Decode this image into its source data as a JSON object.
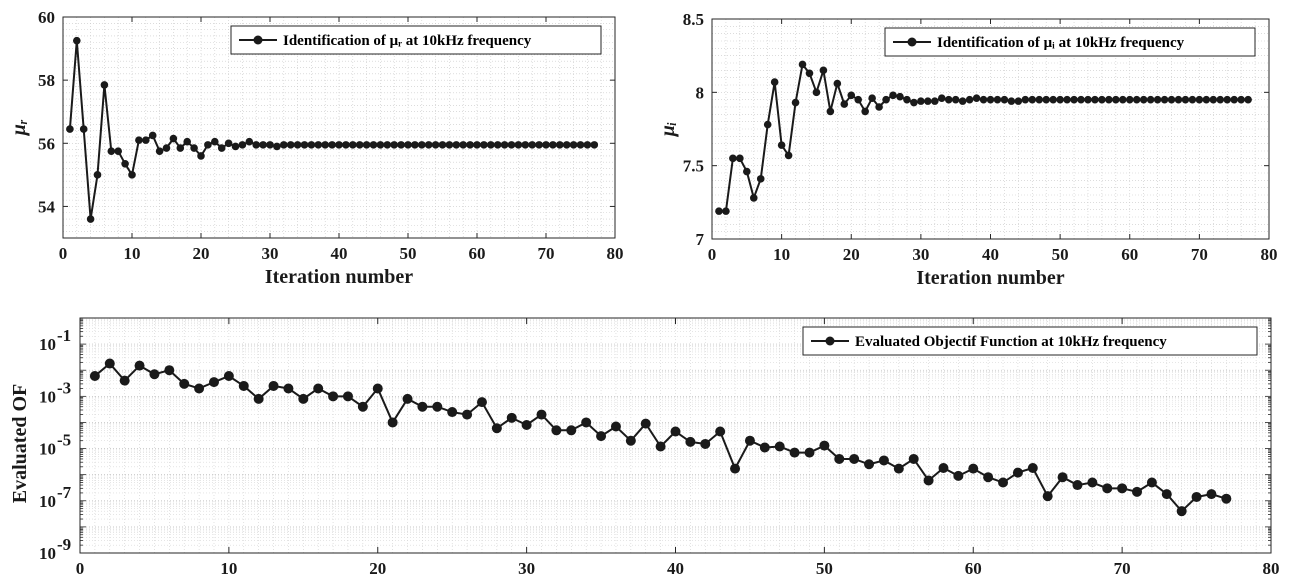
{
  "chart_data": [
    {
      "type": "line",
      "legend": {
        "label": "Identification of μᵣ at 10kHz frequency",
        "position": "top-right"
      },
      "xlabel": "Iteration number",
      "ylabel": "μᵣ",
      "xlim": [
        0,
        80
      ],
      "ylim": [
        53,
        60
      ],
      "xticks": [
        0,
        10,
        20,
        30,
        40,
        50,
        60,
        70,
        80
      ],
      "yticks": [
        54,
        56,
        58,
        60
      ],
      "grid": "minor-dotted",
      "color": "#1a1a1a",
      "series": [
        {
          "x": [
            1,
            2,
            3,
            4,
            5,
            6,
            7,
            8,
            9,
            10,
            11,
            12,
            13,
            14,
            15,
            16,
            17,
            18,
            19,
            20,
            21,
            22,
            23,
            24,
            25,
            26,
            27,
            28,
            29,
            30,
            31,
            32,
            33,
            34,
            35,
            36,
            37,
            38,
            39,
            40,
            41,
            42,
            43,
            44,
            45,
            46,
            47,
            48,
            49,
            50,
            51,
            52,
            53,
            54,
            55,
            56,
            57,
            58,
            59,
            60,
            61,
            62,
            63,
            64,
            65,
            66,
            67,
            68,
            69,
            70,
            71,
            72,
            73,
            74,
            75,
            76,
            77
          ],
          "y": [
            56.45,
            59.25,
            56.45,
            53.6,
            55.0,
            57.85,
            55.75,
            55.75,
            55.35,
            55.0,
            56.1,
            56.1,
            56.25,
            55.75,
            55.85,
            56.15,
            55.85,
            56.05,
            55.85,
            55.6,
            55.95,
            56.05,
            55.85,
            56.0,
            55.9,
            55.95,
            56.05,
            55.95,
            55.95,
            55.95,
            55.9,
            55.95,
            55.95,
            55.95,
            55.95,
            55.95,
            55.95,
            55.95,
            55.95,
            55.95,
            55.95,
            55.95,
            55.95,
            55.95,
            55.95,
            55.95,
            55.95,
            55.95,
            55.95,
            55.95,
            55.95,
            55.95,
            55.95,
            55.95,
            55.95,
            55.95,
            55.95,
            55.95,
            55.95,
            55.95,
            55.95,
            55.95,
            55.95,
            55.95,
            55.95,
            55.95,
            55.95,
            55.95,
            55.95,
            55.95,
            55.95,
            55.95,
            55.95,
            55.95,
            55.95,
            55.95,
            55.95
          ]
        }
      ]
    },
    {
      "type": "line",
      "legend": {
        "label": "Identification of μᵢ at 10kHz frequency",
        "position": "top-right"
      },
      "xlabel": "Iteration number",
      "ylabel": "μᵢ",
      "xlim": [
        0,
        80
      ],
      "ylim": [
        7,
        8.5
      ],
      "xticks": [
        0,
        10,
        20,
        30,
        40,
        50,
        60,
        70,
        80
      ],
      "yticks": [
        7,
        7.5,
        8,
        8.5
      ],
      "grid": "minor-dotted",
      "color": "#1a1a1a",
      "series": [
        {
          "x": [
            1,
            2,
            3,
            4,
            5,
            6,
            7,
            8,
            9,
            10,
            11,
            12,
            13,
            14,
            15,
            16,
            17,
            18,
            19,
            20,
            21,
            22,
            23,
            24,
            25,
            26,
            27,
            28,
            29,
            30,
            31,
            32,
            33,
            34,
            35,
            36,
            37,
            38,
            39,
            40,
            41,
            42,
            43,
            44,
            45,
            46,
            47,
            48,
            49,
            50,
            51,
            52,
            53,
            54,
            55,
            56,
            57,
            58,
            59,
            60,
            61,
            62,
            63,
            64,
            65,
            66,
            67,
            68,
            69,
            70,
            71,
            72,
            73,
            74,
            75,
            76,
            77
          ],
          "y": [
            7.19,
            7.19,
            7.55,
            7.55,
            7.46,
            7.28,
            7.41,
            7.78,
            8.07,
            7.64,
            7.57,
            7.93,
            8.19,
            8.13,
            8.0,
            8.15,
            7.87,
            8.06,
            7.92,
            7.98,
            7.95,
            7.87,
            7.96,
            7.9,
            7.95,
            7.98,
            7.97,
            7.95,
            7.93,
            7.94,
            7.94,
            7.94,
            7.96,
            7.95,
            7.95,
            7.94,
            7.95,
            7.96,
            7.95,
            7.95,
            7.95,
            7.95,
            7.94,
            7.94,
            7.95,
            7.95,
            7.95,
            7.95,
            7.95,
            7.95,
            7.95,
            7.95,
            7.95,
            7.95,
            7.95,
            7.95,
            7.95,
            7.95,
            7.95,
            7.95,
            7.95,
            7.95,
            7.95,
            7.95,
            7.95,
            7.95,
            7.95,
            7.95,
            7.95,
            7.95,
            7.95,
            7.95,
            7.95,
            7.95,
            7.95,
            7.95,
            7.95
          ]
        }
      ]
    },
    {
      "type": "line",
      "legend": {
        "label": "Evaluated Objectif Function at 10kHz frequency",
        "position": "top-right"
      },
      "xlabel": "Iteration number",
      "ylabel": "Evaluated OF",
      "xlim": [
        0,
        80
      ],
      "yscale": "log",
      "ylim": [
        1e-09,
        1
      ],
      "xticks": [
        0,
        10,
        20,
        30,
        40,
        50,
        60,
        70,
        80
      ],
      "yticks": [
        1e-09,
        1e-07,
        1e-05,
        0.001,
        0.1
      ],
      "ytick_labels": [
        {
          "base": "10",
          "exp": "-9"
        },
        {
          "base": "10",
          "exp": "-7"
        },
        {
          "base": "10",
          "exp": "-5"
        },
        {
          "base": "10",
          "exp": "-3"
        },
        {
          "base": "10",
          "exp": "-1"
        }
      ],
      "grid": "minor-dotted",
      "color": "#1a1a1a",
      "series": [
        {
          "x": [
            1,
            2,
            3,
            4,
            5,
            6,
            7,
            8,
            9,
            10,
            11,
            12,
            13,
            14,
            15,
            16,
            17,
            18,
            19,
            20,
            21,
            22,
            23,
            24,
            25,
            26,
            27,
            28,
            29,
            30,
            31,
            32,
            33,
            34,
            35,
            36,
            37,
            38,
            39,
            40,
            41,
            42,
            43,
            44,
            45,
            46,
            47,
            48,
            49,
            50,
            51,
            52,
            53,
            54,
            55,
            56,
            57,
            58,
            59,
            60,
            61,
            62,
            63,
            64,
            65,
            66,
            67,
            68,
            69,
            70,
            71,
            72,
            73,
            74,
            75,
            76,
            77
          ],
          "y": [
            0.006,
            0.018,
            0.004,
            0.015,
            0.007,
            0.01,
            0.003,
            0.002,
            0.0035,
            0.006,
            0.0025,
            0.0008,
            0.0025,
            0.002,
            0.0008,
            0.002,
            0.001,
            0.001,
            0.0004,
            0.002,
            0.0001,
            0.0008,
            0.0004,
            0.0004,
            0.00025,
            0.0002,
            0.0006,
            6e-05,
            0.00015,
            8e-05,
            0.0002,
            5e-05,
            5e-05,
            0.0001,
            3e-05,
            7e-05,
            2e-05,
            9e-05,
            1.2e-05,
            4.5e-05,
            1.8e-05,
            1.5e-05,
            4.5e-05,
            1.7e-06,
            2e-05,
            1.1e-05,
            1.2e-05,
            7e-06,
            7e-06,
            1.3e-05,
            4e-06,
            4e-06,
            2.5e-06,
            3.5e-06,
            1.7e-06,
            4e-06,
            6e-07,
            1.8e-06,
            9e-07,
            1.7e-06,
            8e-07,
            5e-07,
            1.2e-06,
            1.8e-06,
            1.5e-07,
            8e-07,
            4e-07,
            5e-07,
            3e-07,
            3e-07,
            2.2e-07,
            5e-07,
            1.8e-07,
            4e-08,
            1.4e-07,
            1.8e-07,
            1.2e-07
          ]
        }
      ]
    }
  ]
}
